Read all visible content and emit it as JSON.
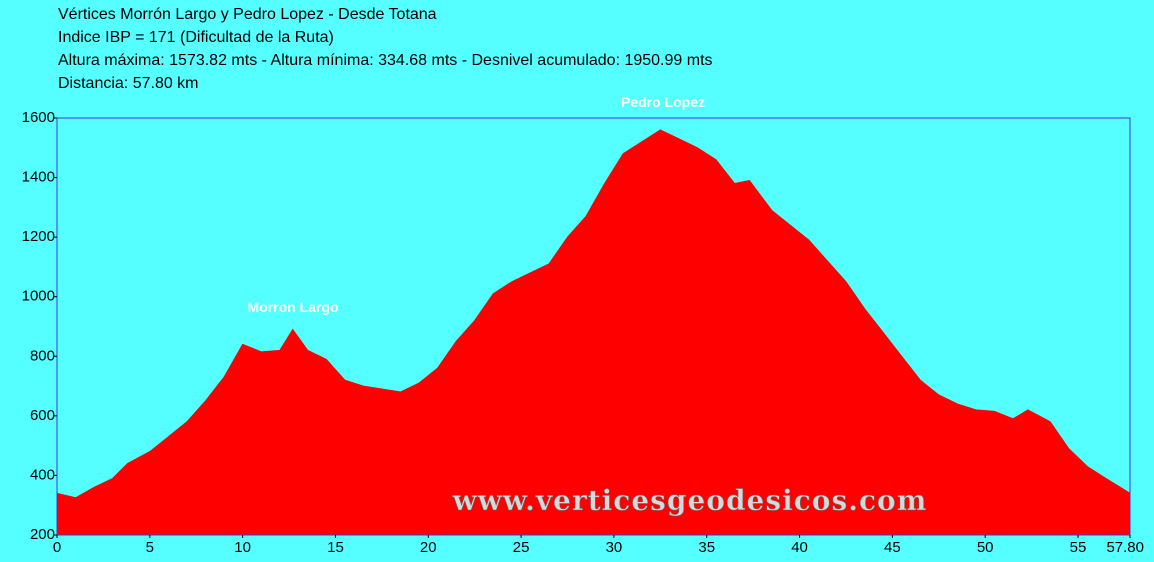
{
  "chart_data": {
    "type": "area",
    "title": "Vértices Morrón Largo y Pedro Lopez - Desde Totana",
    "subtitle": [
      "Indice IBP = 171 (Dificultad de la Ruta)",
      "Altura máxima: 1573.82 mts - Altura mínima: 334.68 mts - Desnivel acumulado: 1950.99 mts",
      "Distancia: 57.80 km"
    ],
    "annotations": [
      "Pedro Lopez",
      "Morron Largo",
      "www.verticesgeodesicos.com"
    ],
    "color": "#ff0000",
    "x": [
      0,
      1,
      2,
      3,
      3.8,
      5,
      6,
      7,
      8,
      9,
      10,
      11,
      12,
      12.7,
      13.5,
      14.5,
      15.5,
      16.5,
      17.5,
      18.5,
      19.5,
      20.5,
      21.5,
      22.5,
      23.5,
      24.5,
      25.5,
      26.5,
      27.5,
      28.5,
      29.5,
      30.5,
      31.5,
      32.5,
      33.5,
      34.5,
      35.5,
      36.5,
      37.3,
      38.5,
      39.5,
      40.5,
      41.5,
      42.5,
      43.5,
      44.5,
      45.5,
      46.5,
      47.5,
      48.5,
      49.5,
      50.5,
      51.5,
      52.3,
      53.5,
      54.5,
      55.5,
      56.5,
      57.8
    ],
    "values": [
      340,
      325,
      360,
      390,
      440,
      480,
      530,
      580,
      650,
      730,
      840,
      815,
      820,
      890,
      820,
      790,
      720,
      700,
      690,
      680,
      710,
      760,
      850,
      920,
      1010,
      1050,
      1080,
      1110,
      1200,
      1270,
      1380,
      1480,
      1520,
      1560,
      1530,
      1500,
      1460,
      1380,
      1390,
      1290,
      1240,
      1190,
      1120,
      1050,
      960,
      880,
      800,
      720,
      670,
      640,
      620,
      615,
      590,
      620,
      580,
      490,
      430,
      390,
      340
    ],
    "xlim": [
      0,
      57.8
    ],
    "xticks": [
      0,
      5,
      10,
      15,
      20,
      25,
      30,
      35,
      40,
      45,
      50,
      55,
      {
        "value": 57.8,
        "label": "57.80"
      }
    ],
    "ylim": [
      200,
      1600
    ],
    "yticks": [
      200,
      400,
      600,
      800,
      1000,
      1200,
      1400,
      1600
    ]
  }
}
